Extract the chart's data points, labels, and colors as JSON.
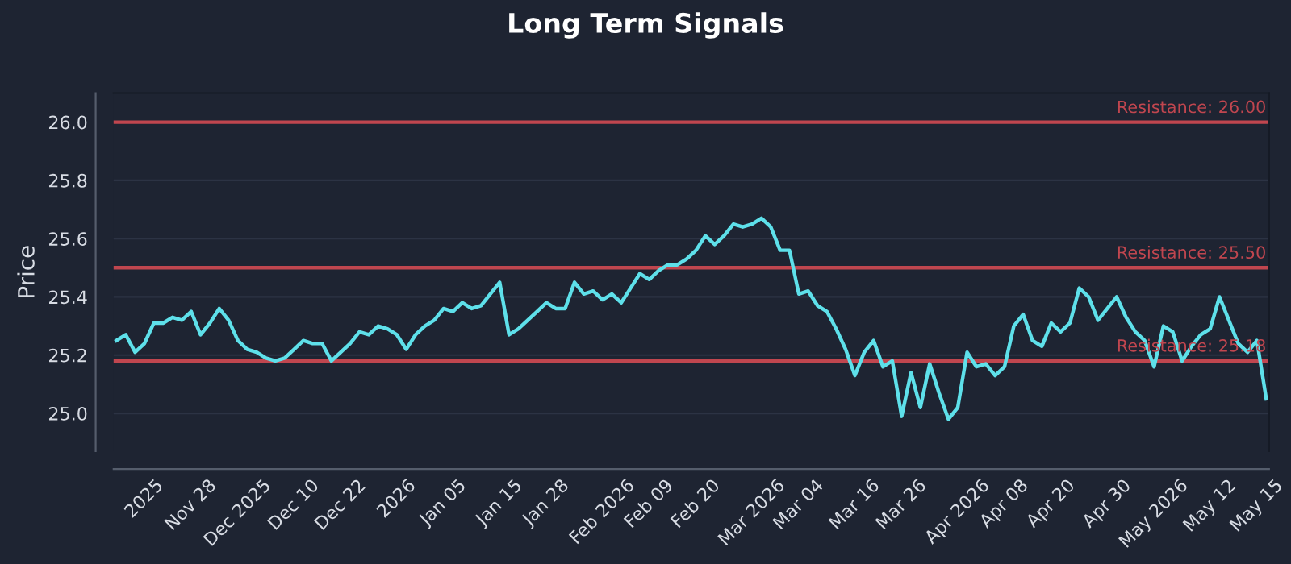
{
  "chart_data": {
    "type": "line",
    "title": "Long Term Signals",
    "ylabel": "Price",
    "categories": [
      null,
      null,
      null,
      "2025",
      null,
      null,
      null,
      null,
      "Nov 28",
      null,
      null,
      null,
      null,
      "Dec 2025",
      null,
      null,
      null,
      null,
      null,
      "Dec 10",
      null,
      null,
      null,
      null,
      "Dec 22",
      null,
      null,
      null,
      null,
      null,
      "2026",
      null,
      null,
      null,
      null,
      "Jan 05",
      null,
      null,
      null,
      null,
      null,
      "Jan 15",
      null,
      null,
      null,
      null,
      "Jan 28",
      null,
      null,
      null,
      null,
      null,
      "Feb 2026",
      null,
      null,
      null,
      null,
      "Feb 09",
      null,
      null,
      null,
      null,
      "Feb 20",
      null,
      null,
      null,
      null,
      null,
      "Mar 2026",
      null,
      null,
      null,
      null,
      "Mar 04",
      null,
      null,
      null,
      null,
      null,
      "Mar 16",
      null,
      null,
      null,
      null,
      "Mar 26",
      null,
      null,
      null,
      null,
      null,
      "Apr 2026",
      null,
      null,
      null,
      null,
      "Apr 08",
      null,
      null,
      null,
      null,
      "Apr 20",
      null,
      null,
      null,
      null,
      null,
      "Apr 30",
      null,
      null,
      null,
      null,
      "May 2026",
      null,
      null,
      null,
      null,
      null,
      "May 12",
      null,
      null,
      null,
      null,
      "May 15",
      null
    ],
    "series": [
      {
        "color": "#5ee0ea",
        "values": [
          25.25,
          25.27,
          25.21,
          25.24,
          25.31,
          25.31,
          25.33,
          25.32,
          25.35,
          25.27,
          25.31,
          25.36,
          25.32,
          25.25,
          25.22,
          25.21,
          25.19,
          25.18,
          25.19,
          25.22,
          25.25,
          25.24,
          25.24,
          25.18,
          25.21,
          25.24,
          25.28,
          25.27,
          25.3,
          25.29,
          25.27,
          25.22,
          25.27,
          25.3,
          25.32,
          25.36,
          25.35,
          25.38,
          25.36,
          25.37,
          25.41,
          25.45,
          25.27,
          25.29,
          25.32,
          25.35,
          25.38,
          25.36,
          25.36,
          25.45,
          25.41,
          25.42,
          25.39,
          25.41,
          25.38,
          25.43,
          25.48,
          25.46,
          25.49,
          25.51,
          25.51,
          25.53,
          25.56,
          25.61,
          25.58,
          25.61,
          25.65,
          25.64,
          25.65,
          25.67,
          25.64,
          25.56,
          25.56,
          25.41,
          25.42,
          25.37,
          25.35,
          25.29,
          25.22,
          25.13,
          25.21,
          25.25,
          25.16,
          25.18,
          24.99,
          25.14,
          25.02,
          25.17,
          25.07,
          24.98,
          25.02,
          25.21,
          25.16,
          25.17,
          25.13,
          25.16,
          25.3,
          25.34,
          25.25,
          25.23,
          25.31,
          25.28,
          25.31,
          25.43,
          25.4,
          25.32,
          25.36,
          25.4,
          25.33,
          25.28,
          25.25,
          25.16,
          25.3,
          25.28,
          25.18,
          25.23,
          25.27,
          25.29,
          25.4,
          25.32,
          25.24,
          25.21,
          25.25,
          25.05
        ]
      }
    ],
    "ylim": [
      24.87,
      26.1
    ],
    "yticks": [
      {
        "value": 25.0,
        "label": "25.0"
      },
      25.2,
      25.4,
      25.6,
      25.8,
      {
        "value": 26.0,
        "label": "26.0"
      }
    ],
    "grid": "y",
    "marker": "none",
    "line_style": "solid",
    "ref_lines": [
      {
        "axis": "y",
        "value": 26.0,
        "label": "Resistance: 26.00",
        "color": "#c0464f"
      },
      {
        "axis": "y",
        "value": 25.5,
        "label": "Resistance: 25.50",
        "color": "#c0464f"
      },
      {
        "axis": "y",
        "value": 25.18,
        "label": "Resistance: 25.18",
        "color": "#c0464f"
      }
    ]
  }
}
